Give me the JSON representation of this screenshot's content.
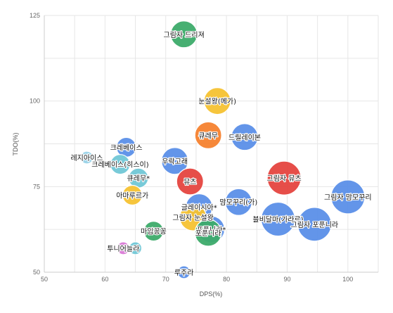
{
  "chart_data": {
    "type": "bubble",
    "xlabel": "DPS(%)",
    "ylabel": "TDO(%)",
    "xlim": [
      50,
      105
    ],
    "ylim": [
      50,
      125
    ],
    "x_ticks": [
      50,
      60,
      70,
      80,
      90,
      100
    ],
    "y_ticks": [
      50,
      75,
      100,
      125
    ],
    "grid": true,
    "legend": "none",
    "points": [
      {
        "label": "그림자 드리져",
        "x": 73.0,
        "y": 119.5,
        "size": 3,
        "color": "#3dab6a"
      },
      {
        "label": "눈설왕(메가)",
        "x": 78.5,
        "y": 100.0,
        "size": 3,
        "color": "#f6c232"
      },
      {
        "label": "큐레무",
        "x": 77.0,
        "y": 90.0,
        "size": 3,
        "color": "#f5822f"
      },
      {
        "label": "드릴레이본",
        "x": 83.0,
        "y": 89.5,
        "size": 3,
        "color": "#5b8fe8"
      },
      {
        "label": "크레베이스",
        "x": 63.5,
        "y": 86.5,
        "size": 2,
        "color": "#5b8fe8"
      },
      {
        "label": "레지아이스",
        "x": 57.0,
        "y": 83.5,
        "size": 1,
        "color": "#9ad3e8"
      },
      {
        "label": "크레베이스(히스이)",
        "x": 62.5,
        "y": 81.5,
        "size": 2,
        "color": "#71c7d6"
      },
      {
        "label": "우락고래",
        "x": 71.5,
        "y": 82.5,
        "size": 3,
        "color": "#5b8fe8"
      },
      {
        "label": "큐레무*",
        "x": 65.5,
        "y": 77.5,
        "size": 2,
        "color": "#71c7d6"
      },
      {
        "label": "뮤츠",
        "x": 74.0,
        "y": 76.5,
        "size": 3,
        "color": "#e5453f"
      },
      {
        "label": "그림자 뮤츠",
        "x": 89.5,
        "y": 77.5,
        "size": 4,
        "color": "#e5453f"
      },
      {
        "label": "그림자 맘모꾸리",
        "x": 100.0,
        "y": 72.0,
        "size": 4,
        "color": "#5b8fe8"
      },
      {
        "label": "아마루르가",
        "x": 64.5,
        "y": 72.5,
        "size": 2,
        "color": "#f6c232"
      },
      {
        "label": "맘모꾸리(가)",
        "x": 82.0,
        "y": 70.5,
        "size": 3,
        "color": "#5b8fe8"
      },
      {
        "label": "글레이시아*",
        "x": 75.5,
        "y": 69.0,
        "size": 3,
        "color": "#5b8fe8"
      },
      {
        "label": "그림자 눈설왕",
        "x": 74.5,
        "y": 66.0,
        "size": 3,
        "color": "#f6c232"
      },
      {
        "label": "블비달마(가라르)",
        "x": 88.5,
        "y": 65.5,
        "size": 4,
        "color": "#5b8fe8"
      },
      {
        "label": "그림자 포푼니라",
        "x": 94.5,
        "y": 64.0,
        "size": 4,
        "color": "#5b8fe8"
      },
      {
        "label": "포푼니라*",
        "x": 77.5,
        "y": 62.5,
        "size": 3,
        "color": "#5b8fe8"
      },
      {
        "label": "포푼니라",
        "x": 77.0,
        "y": 61.5,
        "size": 3,
        "color": "#3dab6a"
      },
      {
        "label": "마임꽁꽁",
        "x": 68.0,
        "y": 62.0,
        "size": 2,
        "color": "#3dab6a"
      },
      {
        "label": "투니어늘라",
        "x": 63.0,
        "y": 57.0,
        "size": 1,
        "color": "#d97ad6"
      },
      {
        "label": "",
        "x": 65.0,
        "y": 57.0,
        "size": 1,
        "color": "#71c7d6"
      },
      {
        "label": "루주라",
        "x": 73.0,
        "y": 50.0,
        "size": 1,
        "color": "#5b8fe8"
      }
    ]
  }
}
